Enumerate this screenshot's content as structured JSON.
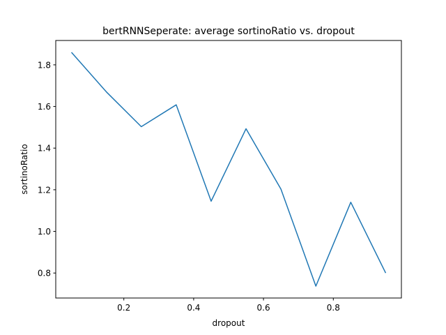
{
  "chart_data": {
    "type": "line",
    "title": "bertRNNSeperate: average sortinoRatio vs. dropout",
    "xlabel": "dropout",
    "ylabel": "sortinoRatio",
    "xlim": [
      0.005,
      0.995
    ],
    "ylim": [
      0.68,
      1.917
    ],
    "xticks": [
      0.2,
      0.4,
      0.6,
      0.8
    ],
    "xtick_labels": [
      "0.2",
      "0.4",
      "0.6",
      "0.8"
    ],
    "yticks": [
      0.8,
      1.0,
      1.2,
      1.4,
      1.6,
      1.8
    ],
    "ytick_labels": [
      "0.8",
      "1.0",
      "1.2",
      "1.4",
      "1.6",
      "1.8"
    ],
    "grid": false,
    "series": [
      {
        "color": "#1f77b4",
        "x": [
          0.05,
          0.15,
          0.25,
          0.35,
          0.45,
          0.55,
          0.65,
          0.75,
          0.85,
          0.95
        ],
        "y": [
          1.86,
          1.67,
          1.503,
          1.608,
          1.145,
          1.493,
          1.203,
          0.737,
          1.14,
          0.8
        ]
      }
    ]
  }
}
